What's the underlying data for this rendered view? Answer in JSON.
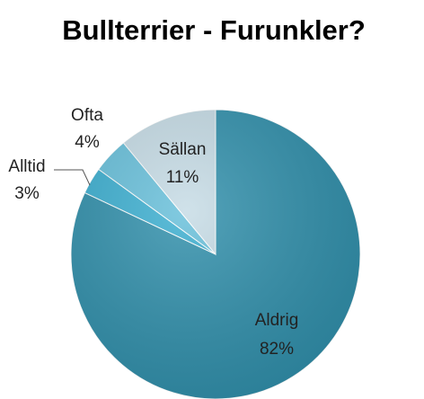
{
  "chart_data": {
    "type": "pie",
    "title": "Bullterrier - Furunkler?",
    "categories": [
      "Aldrig",
      "Alltid",
      "Ofta",
      "Sällan"
    ],
    "values": [
      82,
      3,
      4,
      11
    ],
    "value_labels": [
      "82%",
      "3%",
      "4%",
      "11%"
    ],
    "colors": [
      "#2f8fab",
      "#3aaed0",
      "#66bfda",
      "#c5dbe5"
    ]
  }
}
